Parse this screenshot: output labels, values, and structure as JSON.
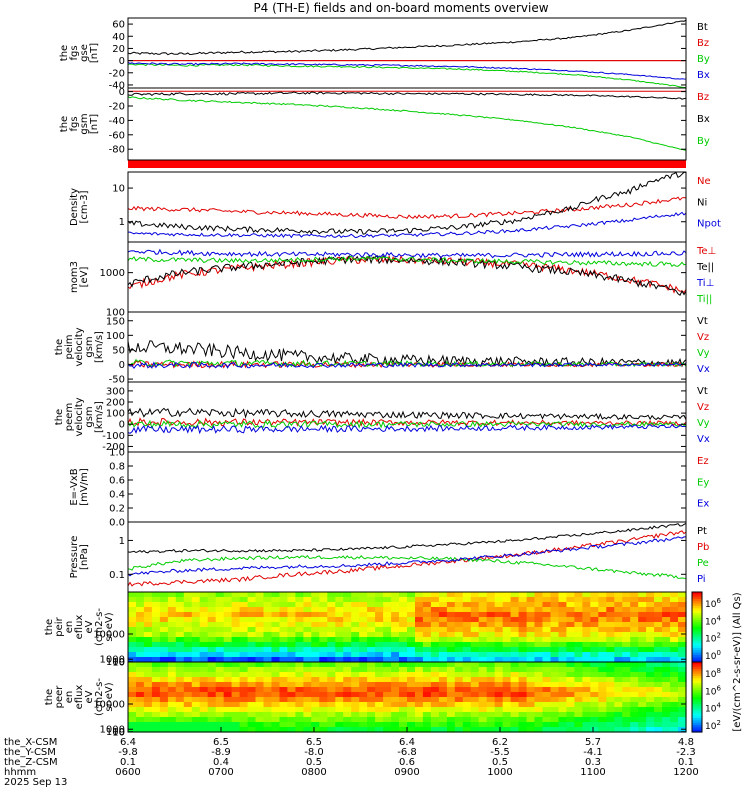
{
  "title": "P4 (TH-E) fields and on-board moments overview",
  "chart_data": [
    {
      "id": "fgs_gse",
      "type": "line",
      "ylabel": [
        "the",
        "fgs",
        "gse",
        "[nT]"
      ],
      "ylim": [
        -45,
        70
      ],
      "yticks": [
        -40,
        -20,
        0,
        20,
        40,
        60
      ],
      "hlines": [
        {
          "y": 0,
          "color": "#e00000"
        }
      ],
      "series": [
        {
          "name": "Bt",
          "color": "#000000",
          "x": [
            0,
            0.1,
            0.2,
            0.3,
            0.4,
            0.5,
            0.6,
            0.7,
            0.8,
            0.9,
            1
          ],
          "y": [
            12,
            11,
            14,
            15,
            18,
            22,
            26,
            31,
            38,
            50,
            66
          ],
          "noise": 2.0
        },
        {
          "name": "Bz",
          "color": "#e00000",
          "x": [
            0,
            1
          ],
          "y": [
            0,
            0
          ],
          "noise": 0
        },
        {
          "name": "By",
          "color": "#00cc00",
          "x": [
            0,
            0.1,
            0.2,
            0.3,
            0.4,
            0.5,
            0.6,
            0.7,
            0.8,
            0.9,
            1
          ],
          "y": [
            -6,
            -8,
            -7,
            -9,
            -10,
            -12,
            -14,
            -18,
            -23,
            -32,
            -44
          ],
          "noise": 1.5
        },
        {
          "name": "Bx",
          "color": "#0000dd",
          "x": [
            0,
            0.1,
            0.2,
            0.3,
            0.4,
            0.5,
            0.6,
            0.7,
            0.8,
            0.9,
            1
          ],
          "y": [
            -4,
            -6,
            -5,
            -6,
            -7,
            -8,
            -10,
            -13,
            -17,
            -23,
            -31
          ],
          "noise": 1.5
        }
      ]
    },
    {
      "id": "fgs_gsm",
      "type": "line",
      "ylabel": [
        "the",
        "fgs",
        "gsm",
        "[nT]"
      ],
      "ylim": [
        -95,
        5
      ],
      "yticks": [
        -80,
        -60,
        -40,
        -20,
        0
      ],
      "hlines": [],
      "series": [
        {
          "name": "Bz",
          "color": "#e00000",
          "x": [
            0,
            1
          ],
          "y": [
            0.5,
            0.5
          ],
          "noise": 0
        },
        {
          "name": "Bx",
          "color": "#000000",
          "x": [
            0,
            0.1,
            0.2,
            0.3,
            0.4,
            0.5,
            0.6,
            0.7,
            0.8,
            0.9,
            1
          ],
          "y": [
            -4,
            -3,
            -3,
            -2,
            -2,
            -3,
            -3,
            -4,
            -5,
            -7,
            -10
          ],
          "noise": 1.8
        },
        {
          "name": "By",
          "color": "#00cc00",
          "x": [
            0,
            0.1,
            0.2,
            0.3,
            0.4,
            0.5,
            0.6,
            0.7,
            0.8,
            0.9,
            1
          ],
          "y": [
            -8,
            -12,
            -15,
            -18,
            -22,
            -27,
            -33,
            -40,
            -50,
            -63,
            -82
          ],
          "noise": 1.2
        }
      ]
    },
    {
      "id": "density",
      "type": "line",
      "logy": true,
      "ylabel": [
        "Density",
        "[cm-3]"
      ],
      "ylim": [
        0.25,
        30
      ],
      "yticks": [
        1,
        10
      ],
      "hlines": [],
      "series": [
        {
          "name": "Ne",
          "color": "#e00000",
          "x": [
            0,
            0.1,
            0.2,
            0.3,
            0.4,
            0.5,
            0.6,
            0.7,
            0.8,
            0.9,
            1
          ],
          "y": [
            2.5,
            2.3,
            2.0,
            1.8,
            1.6,
            1.4,
            1.5,
            1.8,
            2.3,
            3.2,
            5
          ],
          "noise": 0.06
        },
        {
          "name": "Ni",
          "color": "#000000",
          "x": [
            0,
            0.1,
            0.2,
            0.3,
            0.4,
            0.5,
            0.6,
            0.7,
            0.8,
            0.9,
            1
          ],
          "y": [
            0.9,
            0.7,
            0.6,
            0.55,
            0.5,
            0.55,
            0.7,
            1.1,
            2.5,
            8,
            28
          ],
          "noise": 0.08
        },
        {
          "name": "Npot",
          "color": "#0000dd",
          "x": [
            0,
            0.1,
            0.2,
            0.3,
            0.4,
            0.5,
            0.6,
            0.7,
            0.8,
            0.9,
            1
          ],
          "y": [
            0.45,
            0.42,
            0.4,
            0.38,
            0.38,
            0.4,
            0.45,
            0.55,
            0.75,
            1.1,
            1.8
          ],
          "noise": 0.05
        }
      ]
    },
    {
      "id": "temperature",
      "type": "line",
      "logy": true,
      "ylabel": [
        "mom3",
        "[eV]"
      ],
      "ylim": [
        100,
        6000
      ],
      "yticks": [
        100,
        1000
      ],
      "hlines": [],
      "series": [
        {
          "name": "Te⊥",
          "color": "#e00000",
          "x": [
            0,
            0.1,
            0.2,
            0.3,
            0.4,
            0.5,
            0.6,
            0.7,
            0.8,
            0.9,
            1
          ],
          "y": [
            400,
            900,
            1300,
            1700,
            2100,
            2100,
            1900,
            1600,
            1100,
            650,
            320
          ],
          "noise": 0.1
        },
        {
          "name": "Te||",
          "color": "#000000",
          "x": [
            0,
            0.1,
            0.2,
            0.3,
            0.4,
            0.5,
            0.6,
            0.7,
            0.8,
            0.9,
            1
          ],
          "y": [
            500,
            1000,
            1400,
            1800,
            2200,
            2100,
            1800,
            1400,
            1000,
            600,
            280
          ],
          "noise": 0.1
        },
        {
          "name": "Ti⊥",
          "color": "#0000dd",
          "x": [
            0,
            0.1,
            0.2,
            0.3,
            0.4,
            0.5,
            0.6,
            0.7,
            0.8,
            0.9,
            1
          ],
          "y": [
            3500,
            3200,
            3000,
            2900,
            2900,
            2800,
            2700,
            2800,
            2900,
            3000,
            3100
          ],
          "noise": 0.06
        },
        {
          "name": "Ti||",
          "color": "#00cc00",
          "x": [
            0,
            0.1,
            0.2,
            0.3,
            0.4,
            0.5,
            0.6,
            0.7,
            0.8,
            0.9,
            1
          ],
          "y": [
            2200,
            2100,
            2000,
            2100,
            2300,
            2200,
            2000,
            1900,
            1800,
            1700,
            1600
          ],
          "noise": 0.06
        }
      ]
    },
    {
      "id": "peim_velocity",
      "type": "line",
      "ylabel": [
        "the",
        "peim",
        "velocity",
        "gsm",
        "[km/s]"
      ],
      "ylim": [
        -60,
        180
      ],
      "yticks": [
        -50,
        0,
        50,
        100,
        150
      ],
      "hlines": [],
      "series": [
        {
          "name": "Vt",
          "color": "#000000",
          "x": [
            0,
            0.1,
            0.2,
            0.3,
            0.4,
            0.5,
            0.6,
            0.7,
            0.8,
            0.9,
            1
          ],
          "y": [
            60,
            55,
            40,
            28,
            20,
            15,
            12,
            10,
            8,
            7,
            6
          ],
          "noise": 25
        },
        {
          "name": "Vz",
          "color": "#e00000",
          "x": [
            0,
            1
          ],
          "y": [
            0,
            0
          ],
          "noise": 12
        },
        {
          "name": "Vy",
          "color": "#00cc00",
          "x": [
            0,
            1
          ],
          "y": [
            5,
            0
          ],
          "noise": 12
        },
        {
          "name": "Vx",
          "color": "#0000dd",
          "x": [
            0,
            1
          ],
          "y": [
            -3,
            0
          ],
          "noise": 10
        }
      ]
    },
    {
      "id": "peem_velocity",
      "type": "line",
      "ylabel": [
        "the",
        "peem",
        "velocity",
        "gsm",
        "[km/s]"
      ],
      "ylim": [
        -250,
        380
      ],
      "yticks": [
        -200,
        -100,
        0,
        100,
        200,
        300
      ],
      "hlines": [],
      "series": [
        {
          "name": "Vt",
          "color": "#000000",
          "x": [
            0,
            0.1,
            0.2,
            0.3,
            0.4,
            0.5,
            0.6,
            0.7,
            0.8,
            0.9,
            1
          ],
          "y": [
            100,
            110,
            100,
            95,
            90,
            85,
            80,
            75,
            70,
            65,
            60
          ],
          "noise": 40
        },
        {
          "name": "Vz",
          "color": "#e00000",
          "x": [
            0,
            1
          ],
          "y": [
            20,
            10
          ],
          "noise": 35
        },
        {
          "name": "Vy",
          "color": "#00cc00",
          "x": [
            0,
            1
          ],
          "y": [
            0,
            0
          ],
          "noise": 35
        },
        {
          "name": "Vx",
          "color": "#0000dd",
          "x": [
            0,
            0.5,
            1
          ],
          "y": [
            -50,
            -40,
            -20
          ],
          "noise": 35
        }
      ]
    },
    {
      "id": "efield",
      "type": "line",
      "ylabel": [
        "E=-VxB",
        "[mV/m]"
      ],
      "ylim": [
        0,
        1
      ],
      "yticks": [
        0.0,
        0.2,
        0.4,
        0.6,
        0.8,
        1.0
      ],
      "hlines": [],
      "series": [
        {
          "name": "Ez",
          "color": "#e00000",
          "x": [],
          "y": [],
          "noise": 0
        },
        {
          "name": "Ey",
          "color": "#00cc00",
          "x": [],
          "y": [],
          "noise": 0
        },
        {
          "name": "Ex",
          "color": "#0000dd",
          "x": [],
          "y": [],
          "noise": 0
        }
      ]
    },
    {
      "id": "pressure",
      "type": "line",
      "logy": true,
      "ylabel": [
        "Pressure",
        "[nPa]"
      ],
      "ylim": [
        0.03,
        3.5
      ],
      "yticks": [
        0.1,
        1.0
      ],
      "hlines": [],
      "series": [
        {
          "name": "Pt",
          "color": "#000000",
          "x": [
            0,
            0.1,
            0.2,
            0.3,
            0.4,
            0.5,
            0.6,
            0.7,
            0.8,
            0.9,
            1
          ],
          "y": [
            0.45,
            0.5,
            0.5,
            0.5,
            0.55,
            0.65,
            0.8,
            1.0,
            1.4,
            2.0,
            3.0
          ],
          "noise": 0.04
        },
        {
          "name": "Pb",
          "color": "#e00000",
          "x": [
            0,
            0.1,
            0.2,
            0.3,
            0.4,
            0.5,
            0.6,
            0.7,
            0.8,
            0.9,
            1
          ],
          "y": [
            0.05,
            0.06,
            0.07,
            0.1,
            0.13,
            0.18,
            0.26,
            0.38,
            0.6,
            1.0,
            1.8
          ],
          "noise": 0.06
        },
        {
          "name": "Pe",
          "color": "#00cc00",
          "x": [
            0,
            0.1,
            0.2,
            0.3,
            0.4,
            0.5,
            0.6,
            0.7,
            0.8,
            0.9,
            1
          ],
          "y": [
            0.14,
            0.25,
            0.3,
            0.32,
            0.32,
            0.3,
            0.28,
            0.22,
            0.16,
            0.11,
            0.08
          ],
          "noise": 0.05
        },
        {
          "name": "Pi",
          "color": "#0000dd",
          "x": [
            0,
            0.1,
            0.2,
            0.3,
            0.4,
            0.5,
            0.6,
            0.7,
            0.8,
            0.9,
            1
          ],
          "y": [
            0.1,
            0.13,
            0.15,
            0.17,
            0.18,
            0.22,
            0.28,
            0.38,
            0.55,
            0.8,
            1.2
          ],
          "noise": 0.05
        }
      ]
    },
    {
      "id": "peir_spec",
      "type": "heatmap",
      "ylabel": [
        "the",
        "peir",
        "en",
        "eflux",
        "eV",
        "(cm2-s-",
        "sr-eV)"
      ],
      "ylim": [
        8,
        25000
      ],
      "yticks": [
        10,
        100,
        1000,
        10000
      ],
      "description_levels": [
        0.45,
        0.6,
        0.75,
        0.85
      ]
    },
    {
      "id": "peer_spec",
      "type": "heatmap",
      "ylabel": [
        "the",
        "peer",
        "en",
        "eflux",
        "eV",
        "(cm2-s-",
        "sr-eV)"
      ],
      "ylim": [
        8,
        25000
      ],
      "yticks": [
        10,
        100,
        1000,
        10000
      ]
    }
  ],
  "colorbar": {
    "label": "[eV/(cm^2-s-sr-eV)] (All Qs)",
    "ticks_top": [
      "10^6",
      "10^4",
      "10^2",
      "10^0"
    ],
    "ticks_bottom": [
      "10^8",
      "10^6",
      "10^4",
      "10^2"
    ]
  },
  "xaxis": {
    "row_labels": [
      "the_X-CSM",
      "the_Y-CSM",
      "the_Z-CSM",
      "hhmm",
      "2025 Sep 13"
    ],
    "columns": [
      {
        "values": [
          "6.4",
          "-9.8",
          "0.1",
          "0600"
        ]
      },
      {
        "values": [
          "6.5",
          "-8.9",
          "0.4",
          "0700"
        ]
      },
      {
        "values": [
          "6.5",
          "-8.0",
          "0.5",
          "0800"
        ]
      },
      {
        "values": [
          "6.4",
          "-6.8",
          "0.6",
          "0900"
        ]
      },
      {
        "values": [
          "6.2",
          "-5.5",
          "0.5",
          "1000"
        ]
      },
      {
        "values": [
          "5.7",
          "-4.1",
          "0.3",
          "1100"
        ]
      },
      {
        "values": [
          "4.8",
          "-2.3",
          "0.1",
          "1200"
        ]
      }
    ]
  }
}
